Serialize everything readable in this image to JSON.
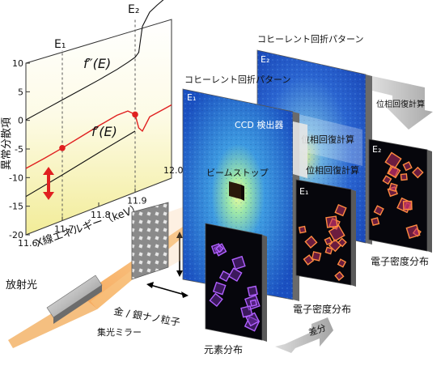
{
  "plot": {
    "e1_label": "E₁",
    "e2_label": "E₂",
    "fpp_label": "f″(E)",
    "fp_label": "f′(E)",
    "ylabel": "異常分散項",
    "xlabel": "X線エネルギー（keV）",
    "y_ticks": [
      "10",
      "5",
      "0",
      "-5",
      "-10",
      "-15",
      "-20"
    ],
    "x_ticks_bottom": [
      "11.6",
      "11.7",
      "11.8",
      "11.9",
      "12.0"
    ]
  },
  "chart_data": {
    "type": "line",
    "xlabel": "X線エネルギー（keV）",
    "ylabel": "異常分散項",
    "xlim": [
      11.6,
      12.0
    ],
    "ylim": [
      -20,
      12
    ],
    "grid": false,
    "markers": {
      "E1": 11.7,
      "E2": 11.9
    },
    "series": [
      {
        "name": "f″(E)",
        "color": "#111111",
        "x": [
          11.6,
          11.65,
          11.7,
          11.75,
          11.8,
          11.85,
          11.88,
          11.9,
          11.91,
          11.92,
          11.94,
          11.96,
          11.98,
          12.0
        ],
        "y": [
          0.1,
          0.6,
          1.1,
          1.6,
          2.1,
          2.7,
          3.2,
          3.6,
          4.2,
          8.5,
          10.5,
          11.2,
          11.8,
          12.5
        ]
      },
      {
        "name": "f′(E)",
        "color": "#e02020",
        "x": [
          11.6,
          11.65,
          11.7,
          11.75,
          11.8,
          11.85,
          11.88,
          11.9,
          11.91,
          11.92,
          11.94,
          11.96,
          11.98,
          12.0
        ],
        "y": [
          -8.4,
          -7.9,
          -7.3,
          -6.6,
          -5.9,
          -5.3,
          -5.3,
          -6.4,
          -9.0,
          -9.8,
          -7.8,
          -7.6,
          -7.4,
          -7.2
        ]
      },
      {
        "name": "",
        "color": "#111111",
        "x": [
          11.6,
          11.7,
          11.8,
          11.9
        ],
        "y": [
          -13.3,
          -12.0,
          -10.6,
          -9.3
        ]
      }
    ],
    "points": [
      {
        "x": 11.7,
        "y": -7.3
      },
      {
        "x": 11.9,
        "y": -6.4
      }
    ]
  },
  "panels": {
    "coherent_label_1": "コヒーレント回折パターン",
    "coherent_label_2": "コヒーレント回折パターン",
    "e1": "E₁",
    "e2": "E₂",
    "ccd": "CCD 検出器",
    "beamstop": "ビームストップ",
    "phase_retrieval_1": "位相回復計算",
    "phase_retrieval_2": "位相回復計算",
    "density_e1_e1": "E₁",
    "density_e2_e2": "E₂",
    "density_label_1": "電子密度分布",
    "density_label_2": "電子密度分布",
    "difference": "差分",
    "element_map": "元素分布"
  },
  "optics": {
    "sample": "金 / 銀ナノ粒子",
    "synchrotron": "放射光",
    "mirror": "集光ミラー"
  },
  "colors": {
    "plot_bg_top": "#ffffff",
    "plot_bg_bottom": "#f5f0a0",
    "fp_curve": "#e02020",
    "beam": "#f0a040",
    "ccd_blue": "#1e5ac8",
    "density_bg": "#06060c"
  }
}
